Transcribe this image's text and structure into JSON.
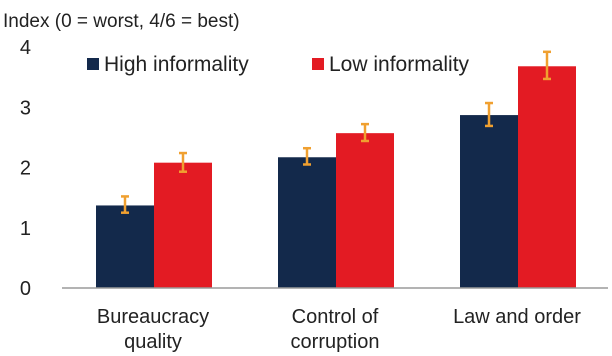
{
  "chart_data": {
    "type": "bar",
    "title": "",
    "ylabel": "Index (0 = worst, 4/6 = best)",
    "xlabel": "",
    "ylim": [
      0,
      4
    ],
    "yticks": [
      0,
      1,
      2,
      3,
      4
    ],
    "grid": false,
    "legend": "top",
    "categories": [
      [
        "Bureaucracy",
        "quality"
      ],
      [
        "Control of",
        "corruption"
      ],
      [
        "Law and order"
      ]
    ],
    "series": [
      {
        "name": "High informality",
        "color": "#13294b",
        "values": [
          1.37,
          2.17,
          2.87
        ],
        "error_low": [
          1.25,
          2.05,
          2.69
        ],
        "error_high": [
          1.52,
          2.32,
          3.07
        ]
      },
      {
        "name": "Low informality",
        "color": "#e31b23",
        "values": [
          2.08,
          2.57,
          3.68
        ],
        "error_low": [
          1.93,
          2.44,
          3.47
        ],
        "error_high": [
          2.24,
          2.72,
          3.92
        ]
      }
    ],
    "error_bar_color": "#f0a030"
  }
}
